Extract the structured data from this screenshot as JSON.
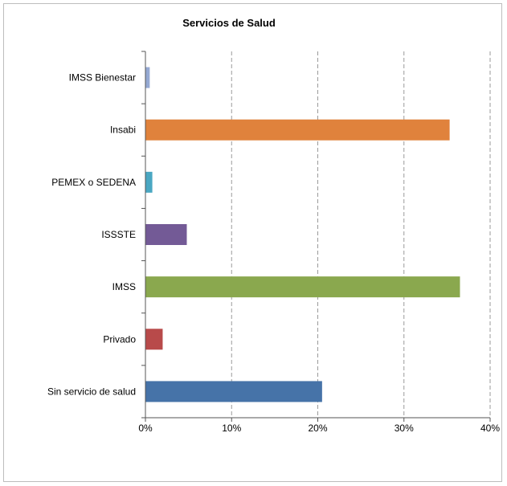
{
  "chart_data": {
    "type": "bar",
    "orientation": "horizontal",
    "title": "Servicios de Salud",
    "xlabel": "",
    "ylabel": "",
    "categories": [
      "IMSS Bienestar",
      "Insabi",
      "PEMEX o SEDENA",
      "ISSSTE",
      "IMSS",
      "Privado",
      "Sin servicio de salud"
    ],
    "values": [
      0.5,
      35.3,
      0.8,
      4.8,
      36.5,
      2.0,
      20.5
    ],
    "colors": [
      "#95a9d3",
      "#e0823c",
      "#4aa7c2",
      "#735a96",
      "#8aa84e",
      "#b84a4a",
      "#4673a8"
    ],
    "xlim": [
      0,
      40
    ],
    "xticks": [
      0,
      10,
      20,
      30,
      40
    ],
    "xtick_labels": [
      "0%",
      "10%",
      "20%",
      "30%",
      "40%"
    ],
    "grid": "vertical-dashed",
    "legend": "none"
  }
}
